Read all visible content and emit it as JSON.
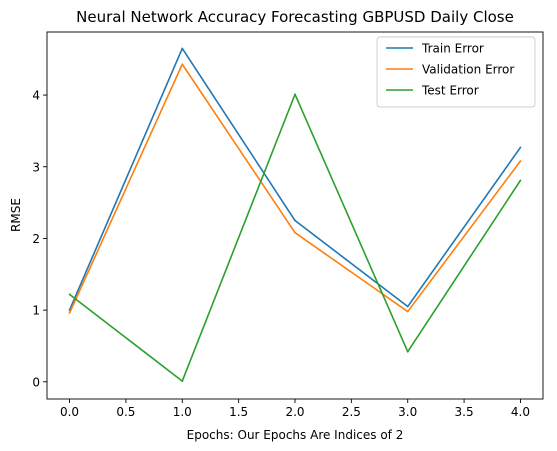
{
  "chart_data": {
    "type": "line",
    "title": "Neural Network Accuracy Forecasting GBPUSD Daily Close",
    "xlabel": "Epochs: Our Epochs Are Indices of 2",
    "ylabel": "RMSE",
    "x": [
      0,
      1,
      2,
      3,
      4
    ],
    "xlim": [
      -0.2,
      4.2
    ],
    "ylim": [
      -0.24,
      4.88
    ],
    "xticks": [
      0.0,
      0.5,
      1.0,
      1.5,
      2.0,
      2.5,
      3.0,
      3.5,
      4.0
    ],
    "xtick_labels": [
      "0.0",
      "0.5",
      "1.0",
      "1.5",
      "2.0",
      "2.5",
      "3.0",
      "3.5",
      "4.0"
    ],
    "yticks": [
      0,
      1,
      2,
      3,
      4
    ],
    "ytick_labels": [
      "0",
      "1",
      "2",
      "3",
      "4"
    ],
    "grid": false,
    "legend_position": "top-right",
    "series": [
      {
        "name": "Train Error",
        "color": "#1f77b4",
        "values": [
          1.0,
          4.65,
          2.25,
          1.05,
          3.27
        ]
      },
      {
        "name": "Validation Error",
        "color": "#ff7f0e",
        "values": [
          0.96,
          4.43,
          2.08,
          0.98,
          3.08
        ]
      },
      {
        "name": "Test Error",
        "color": "#2ca02c",
        "values": [
          1.22,
          0.01,
          4.01,
          0.42,
          2.81
        ]
      }
    ]
  }
}
